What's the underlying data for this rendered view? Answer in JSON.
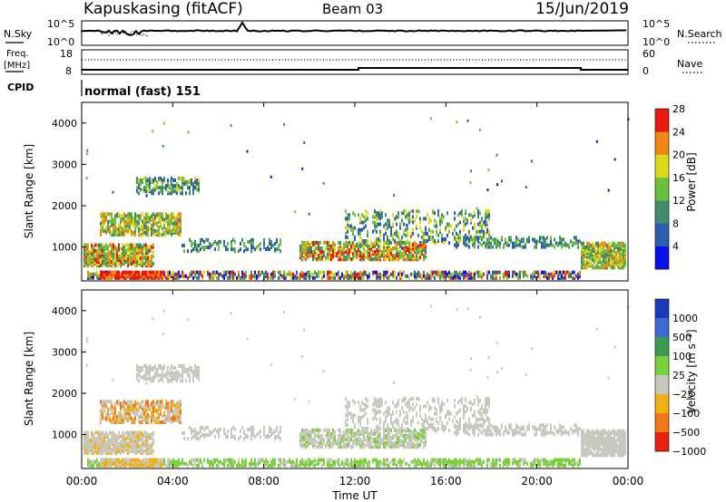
{
  "header": {
    "station": "Kapuskasing (fitACF)",
    "beam": "Beam 03",
    "date": "15/Jun/2019"
  },
  "nsky_panel": {
    "left_label": "N.Sky",
    "left_ticks": [
      "10^5",
      "10^0"
    ],
    "right_label": "N.Search",
    "right_ticks": [
      "10^5",
      "10^0"
    ]
  },
  "freq_panel": {
    "left_label_line1": "Freq.",
    "left_label_line2": "[MHz]",
    "left_ticks": [
      "18",
      "8"
    ],
    "right_label": "Nave",
    "right_ticks": [
      "60",
      "0"
    ]
  },
  "cpid_panel": {
    "label": "CPID",
    "mode_text": "normal (fast) 151"
  },
  "chart_data": [
    {
      "type": "heatmap",
      "name": "power",
      "ylabel": "Slant Range [km]",
      "y_ticks": [
        "1000",
        "2000",
        "3000",
        "4000"
      ],
      "ylim": [
        180,
        4500
      ],
      "xlim_hours": [
        0,
        24
      ],
      "colorbar_label": "Power [dB]",
      "colorbar_ticks": [
        "4",
        "8",
        "12",
        "16",
        "20",
        "24",
        "28"
      ],
      "colorbar_colors": [
        "#0a10e8",
        "#2e5cb0",
        "#3e8c6a",
        "#6cbf3c",
        "#d9d81a",
        "#f08a12",
        "#e81a10"
      ]
    },
    {
      "type": "heatmap",
      "name": "velocity",
      "ylabel": "Slant Range [km]",
      "y_ticks": [
        "1000",
        "2000",
        "3000",
        "4000"
      ],
      "ylim": [
        180,
        4500
      ],
      "xlim_hours": [
        0,
        24
      ],
      "colorbar_label": "Velocity [m s⁻¹]",
      "colorbar_ticks": [
        "1000",
        "500",
        "100",
        "25",
        "−25",
        "−100",
        "−500",
        "−1000"
      ],
      "colorbar_colors": [
        "#1a3ab8",
        "#3c6ad0",
        "#3a9a54",
        "#7ad038",
        "#c8c8c0",
        "#f0b014",
        "#f07818",
        "#e82010"
      ]
    }
  ],
  "x_axis": {
    "ticks": [
      "00:00",
      "04:00",
      "08:00",
      "12:00",
      "16:00",
      "20:00",
      "00:00"
    ],
    "label": "Time UT"
  }
}
